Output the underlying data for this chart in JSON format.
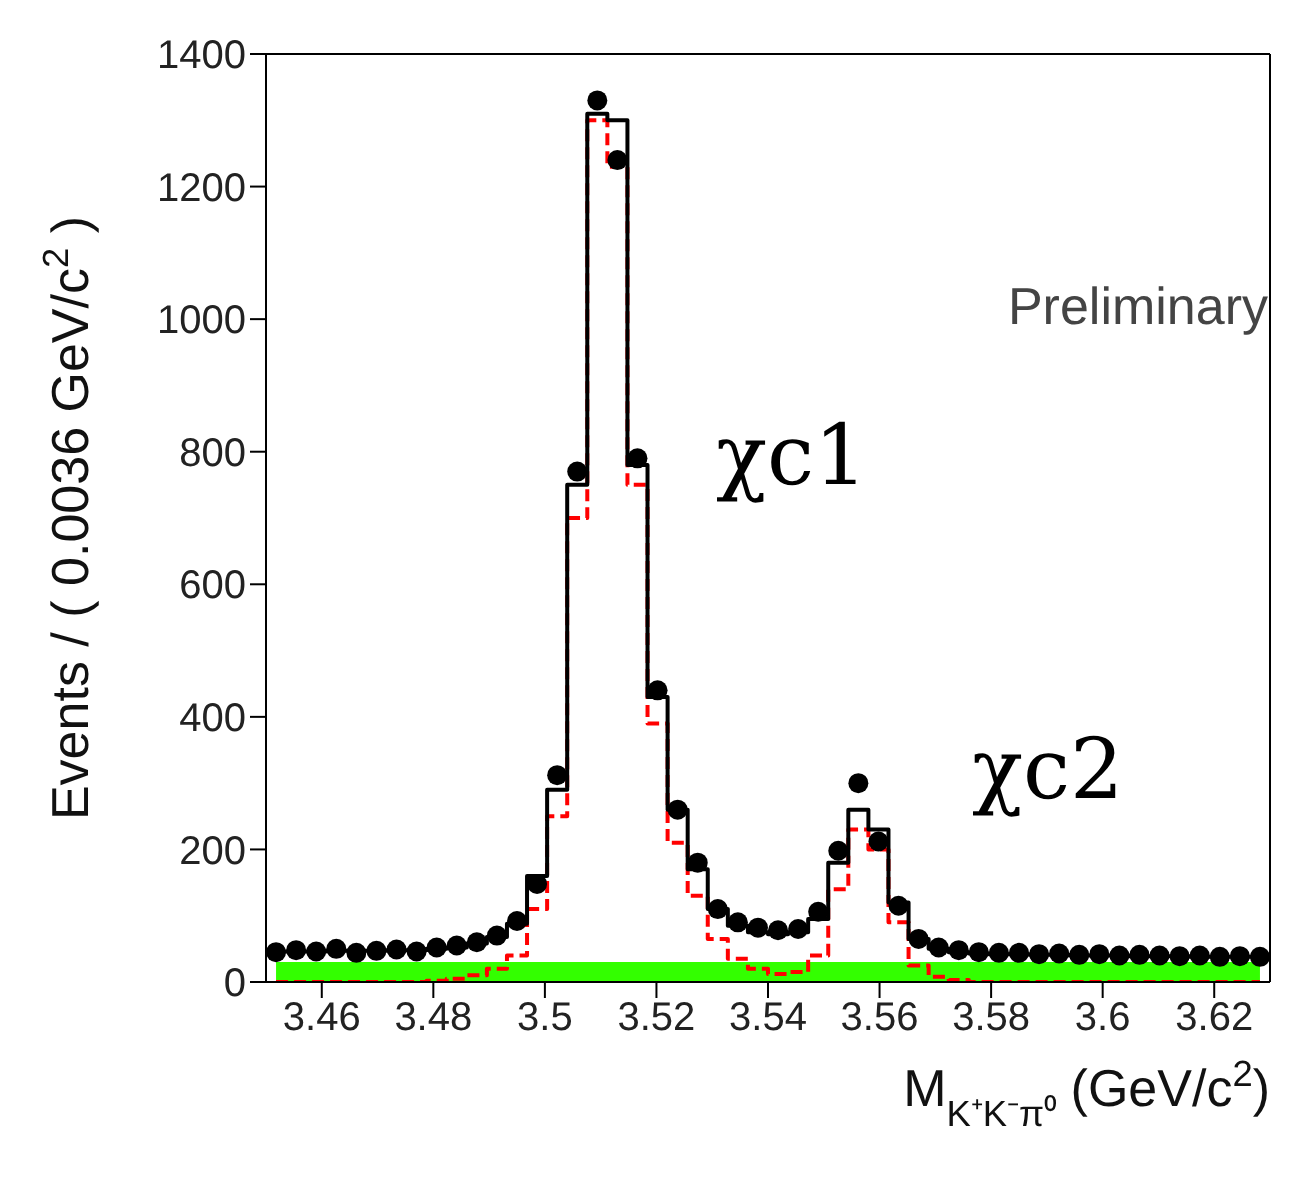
{
  "chart_data": {
    "type": "step",
    "xlabel": "M$_{K⁺K⁻π⁰}$ (GeV/c$^{2}$)",
    "ylabel": "Events / ( 0.0036 GeV/c$^{2}$ )",
    "x": [
      3.4518,
      3.4554,
      3.459,
      3.4626,
      3.4662,
      3.4698,
      3.4734,
      3.477,
      3.4806,
      3.4842,
      3.4878,
      3.4914,
      3.495,
      3.4986,
      3.5022,
      3.5058,
      3.5094,
      3.513,
      3.5166,
      3.5202,
      3.5238,
      3.5274,
      3.531,
      3.5346,
      3.5382,
      3.5418,
      3.5454,
      3.549,
      3.5526,
      3.5562,
      3.5598,
      3.5634,
      3.567,
      3.5706,
      3.5742,
      3.5778,
      3.5814,
      3.585,
      3.5886,
      3.5922,
      3.5958,
      3.5994,
      3.603,
      3.6066,
      3.6102,
      3.6138,
      3.6174,
      3.621,
      3.6246,
      3.6282
    ],
    "series": [
      {
        "type": "area",
        "color": "#33ff00",
        "values": [
          30,
          30,
          30,
          30,
          30,
          30,
          30,
          30,
          30,
          30,
          30,
          30,
          30,
          30,
          30,
          30,
          30,
          30,
          30,
          30,
          30,
          30,
          30,
          30,
          30,
          30,
          30,
          30,
          30,
          30,
          30,
          30,
          30,
          30,
          30,
          30,
          30,
          30,
          30,
          30,
          30,
          30,
          30,
          30,
          30,
          30,
          30,
          30,
          30,
          30
        ]
      },
      {
        "color": "#ff0000",
        "line_style": "dashed",
        "values": [
          0,
          0,
          0,
          0,
          0,
          0,
          0,
          0,
          2,
          5,
          10,
          20,
          40,
          110,
          250,
          700,
          1300,
          1230,
          750,
          390,
          210,
          130,
          65,
          35,
          20,
          12,
          15,
          40,
          140,
          230,
          200,
          90,
          25,
          8,
          3,
          0,
          0,
          0,
          0,
          0,
          0,
          0,
          0,
          0,
          0,
          0,
          0,
          0,
          0,
          0
        ]
      },
      {
        "color": "#000000",
        "line_style": "solid",
        "values": [
          46,
          46,
          46,
          47,
          47,
          47,
          48,
          48,
          50,
          52,
          58,
          68,
          88,
          160,
          290,
          750,
          1310,
          1300,
          780,
          430,
          260,
          170,
          110,
          85,
          75,
          72,
          75,
          95,
          180,
          260,
          230,
          120,
          65,
          50,
          45,
          43,
          42,
          42,
          41,
          41,
          40,
          40,
          40,
          39,
          39,
          39,
          38,
          38,
          38,
          38
        ]
      },
      {
        "type": "scatter",
        "color": "#000000",
        "marker": "circle",
        "values": [
          45,
          48,
          46,
          50,
          44,
          47,
          49,
          46,
          52,
          55,
          60,
          70,
          92,
          148,
          312,
          770,
          1330,
          1240,
          790,
          440,
          260,
          180,
          110,
          90,
          82,
          78,
          80,
          106,
          198,
          300,
          212,
          115,
          65,
          52,
          48,
          45,
          44,
          44,
          42,
          43,
          41,
          42,
          40,
          41,
          40,
          39,
          40,
          38,
          39,
          38
        ]
      }
    ],
    "xlim": [
      3.45,
      3.63
    ],
    "xticks": [
      3.46,
      3.48,
      3.5,
      3.52,
      3.54,
      3.56,
      3.58,
      3.6,
      3.62
    ],
    "ylim": [
      0,
      1400
    ],
    "yticks": [
      0,
      200,
      400,
      600,
      800,
      1000,
      1200,
      1400
    ],
    "annotations": [
      "Preliminary",
      "χc1",
      "χc2"
    ]
  }
}
